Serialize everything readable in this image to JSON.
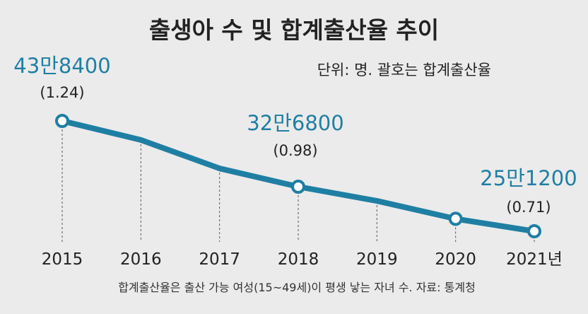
{
  "title": "출생아 수 및 합계출산율 추이",
  "unit_note": "단위: 명. 괄호는 합계출산율",
  "footnote": "합계출산율은 출산 가능 여성(15~49세)이 평생 낳는 자녀 수. 자료: 통계청",
  "colors": {
    "background": "#ebebeb",
    "line": "#1f7fa3",
    "callout": "#1f7fa3",
    "text": "#222222"
  },
  "chart_data": {
    "type": "line",
    "x": [
      "2015",
      "2016",
      "2017",
      "2018",
      "2019",
      "2020",
      "2021년"
    ],
    "values": [
      438400,
      406200,
      357800,
      326800,
      302700,
      272300,
      251200
    ],
    "highlights": [
      {
        "index": 0,
        "label": "43만8400",
        "rate": "(1.24)"
      },
      {
        "index": 3,
        "label": "32만6800",
        "rate": "(0.98)"
      },
      {
        "index": 6,
        "label": "25만1200",
        "rate": "(0.71)"
      }
    ],
    "markers": [
      0,
      3,
      5,
      6
    ],
    "grid": "vertical dashed drop lines"
  }
}
